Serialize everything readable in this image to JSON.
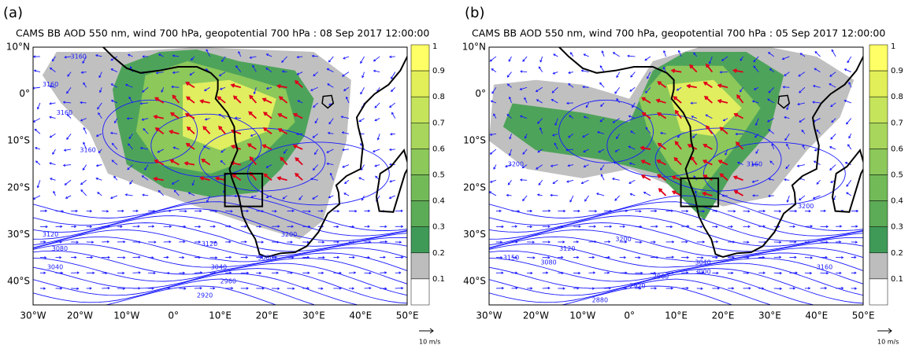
{
  "panels": [
    {
      "label": "(a)",
      "title": "CAMS BB AOD 550 nm, wind 700 hPa, geopotential 700 hPa : 08 Sep 2017 12:00:00",
      "lon_ticks": [
        "30°W",
        "20°W",
        "10°W",
        "0°",
        "10°E",
        "20°E",
        "30°E",
        "40°E",
        "50°E"
      ],
      "lat_ticks": [
        "10°N",
        "0°",
        "10°S",
        "20°S",
        "30°S",
        "40°S"
      ],
      "colorbar_ticks": [
        "1",
        "0.9",
        "0.8",
        "0.7",
        "0.6",
        "0.5",
        "0.4",
        "0.3",
        "0.2",
        "0.1"
      ],
      "wind_scale": "10 m/s",
      "contour_labels": [
        "3160",
        "3160",
        "3160",
        "3160",
        "3120",
        "3080",
        "3040",
        "3120",
        "3080",
        "3040",
        "2960",
        "2920",
        "3200"
      ]
    },
    {
      "label": "(b)",
      "title": "CAMS BB AOD 550 nm, wind 700 hPa, geopotential 700 hPa : 05 Sep 2017 12:00:00",
      "lon_ticks": [
        "30°W",
        "20°W",
        "10°W",
        "0°",
        "10°E",
        "20°E",
        "30°E",
        "40°E",
        "50°E"
      ],
      "lat_ticks": [
        "10°N",
        "0°",
        "10°S",
        "20°S",
        "30°S",
        "40°S"
      ],
      "colorbar_ticks": [
        "1",
        "0.9",
        "0.8",
        "0.7",
        "0.6",
        "0.5",
        "0.4",
        "0.3",
        "0.2",
        "0.1"
      ],
      "wind_scale": "10 m/s",
      "contour_labels": [
        "3200",
        "3160",
        "3200",
        "3150",
        "3120",
        "3080",
        "3040",
        "3000",
        "2960",
        "2920",
        "2880",
        "3160",
        "3200"
      ]
    }
  ]
}
